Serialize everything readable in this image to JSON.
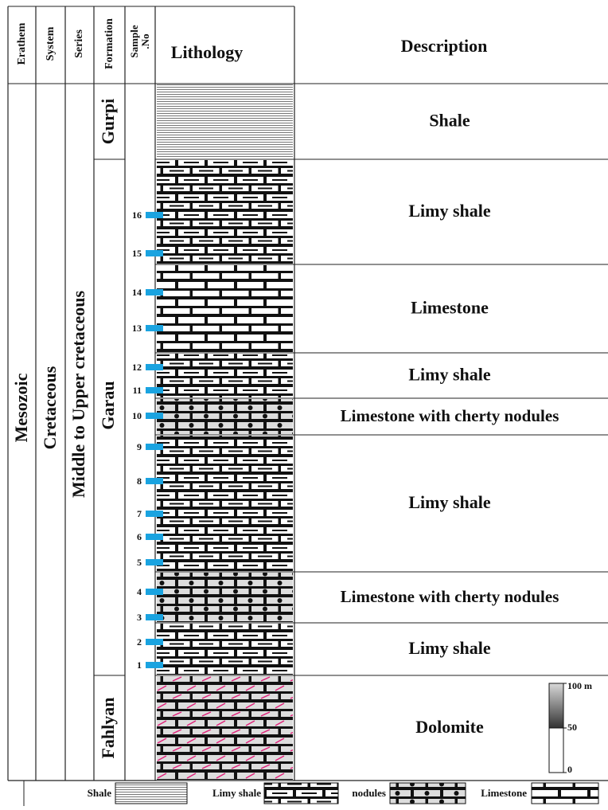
{
  "headers": {
    "erathem": "Erathem",
    "system": "System",
    "series": "Series",
    "formation": "Formation",
    "sample": [
      "Sample",
      ".No"
    ],
    "lithology": "Lithology",
    "description": "Description"
  },
  "erathem": "Mesozoic",
  "system": "Cretaceous",
  "series": "Middle to Upper cretaceous",
  "formations": [
    "Gurpi",
    "Garau",
    "Fahlyan"
  ],
  "units": [
    "Shale",
    "Limy shale",
    "Limestone",
    "Limy shale",
    "Limestone with cherty nodules",
    "Limy shale",
    "Limestone with cherty nodules",
    "Limy shale",
    "Dolomite"
  ],
  "samples": [
    16,
    15,
    14,
    13,
    12,
    11,
    10,
    9,
    8,
    7,
    6,
    5,
    4,
    3,
    2,
    1
  ],
  "scale": {
    "ticks": [
      {
        "value": 100,
        "label": "100 m"
      },
      50,
      0
    ]
  },
  "legend": [
    "Shale",
    "Limy shale",
    "nodules",
    "Limestone"
  ]
}
